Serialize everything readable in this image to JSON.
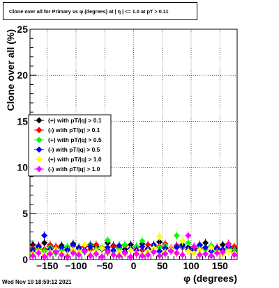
{
  "chart_data": {
    "type": "scatter",
    "title": "Clone  over all for Primary vs φ (degrees) at |  η | <= 1.0 at pT > 0.11",
    "xlabel": "φ (degrees)",
    "ylabel": "Clone  over all (%)",
    "xlim": [
      -180,
      180
    ],
    "ylim": [
      0,
      25
    ],
    "x_ticks": [
      -150,
      -100,
      -50,
      0,
      50,
      100,
      150
    ],
    "x_tick_labels": [
      "−150",
      "−100",
      "−50",
      "0",
      "50",
      "100",
      "150"
    ],
    "y_ticks": [
      0,
      5,
      10,
      15,
      20,
      25
    ],
    "y_tick_labels": [
      "0",
      "5",
      "10",
      "15",
      "20",
      "25"
    ],
    "grid": true,
    "legend_position": "left-middle",
    "marker": "diamond",
    "series": [
      {
        "name": "(+) with pT/|q| > 0.1",
        "color": "#000000",
        "x": [
          -175,
          -165,
          -155,
          -145,
          -135,
          -125,
          -115,
          -105,
          -95,
          -85,
          -75,
          -65,
          -55,
          -45,
          -35,
          -25,
          -15,
          -5,
          5,
          15,
          25,
          35,
          45,
          55,
          65,
          75,
          85,
          95,
          105,
          115,
          125,
          135,
          145,
          155,
          165,
          175
        ],
        "y": [
          1.6,
          1.3,
          1.8,
          1.4,
          1.2,
          1.5,
          1.1,
          1.7,
          1.3,
          1.0,
          1.6,
          1.4,
          1.2,
          1.8,
          1.5,
          1.3,
          1.1,
          1.6,
          1.4,
          1.7,
          1.2,
          1.5,
          1.9,
          1.3,
          1.1,
          1.4,
          1.6,
          1.3,
          1.2,
          1.5,
          1.8,
          1.4,
          1.1,
          1.6,
          1.3,
          1.2
        ]
      },
      {
        "name": "(-) with pT/|q| > 0.1",
        "color": "#ff0000",
        "x": [
          -175,
          -165,
          -155,
          -145,
          -135,
          -125,
          -115,
          -105,
          -95,
          -85,
          -75,
          -65,
          -55,
          -45,
          -35,
          -25,
          -15,
          -5,
          5,
          15,
          25,
          35,
          45,
          55,
          65,
          75,
          85,
          95,
          105,
          115,
          125,
          135,
          145,
          155,
          165,
          175
        ],
        "y": [
          1.2,
          1.5,
          1.1,
          1.6,
          1.4,
          1.0,
          1.3,
          1.5,
          1.2,
          1.4,
          1.1,
          1.6,
          1.3,
          1.0,
          1.4,
          1.2,
          1.5,
          1.1,
          1.3,
          1.0,
          1.6,
          1.2,
          1.4,
          1.7,
          1.2,
          1.5,
          1.3,
          1.0,
          1.4,
          1.2,
          1.1,
          1.5,
          1.3,
          1.0,
          1.7,
          1.4
        ]
      },
      {
        "name": "(+) with pT/|q| > 0.5",
        "color": "#00ff00",
        "x": [
          -175,
          -165,
          -155,
          -145,
          -135,
          -125,
          -115,
          -105,
          -95,
          -85,
          -75,
          -65,
          -55,
          -45,
          -35,
          -25,
          -15,
          -5,
          5,
          15,
          25,
          35,
          45,
          55,
          65,
          75,
          85,
          95,
          105,
          115,
          125,
          135,
          145,
          155,
          165,
          175
        ],
        "y": [
          0.8,
          1.1,
          0.9,
          1.3,
          0.7,
          1.0,
          1.4,
          0.9,
          1.2,
          0.8,
          1.5,
          1.1,
          1.3,
          2.1,
          0.9,
          1.2,
          1.6,
          1.0,
          1.4,
          2.0,
          1.1,
          0.9,
          1.3,
          1.5,
          1.0,
          2.6,
          1.4,
          1.8,
          1.0,
          1.3,
          1.1,
          1.5,
          1.0,
          0.8,
          1.2,
          1.0
        ]
      },
      {
        "name": "(-) with pT/|q| > 0.5",
        "color": "#0000ff",
        "x": [
          -175,
          -165,
          -155,
          -145,
          -135,
          -125,
          -115,
          -105,
          -95,
          -85,
          -75,
          -65,
          -55,
          -45,
          -35,
          -25,
          -15,
          -5,
          5,
          15,
          25,
          35,
          45,
          55,
          65,
          75,
          85,
          95,
          105,
          115,
          125,
          135,
          145,
          155,
          165,
          175
        ],
        "y": [
          1.0,
          1.4,
          2.6,
          1.1,
          0.9,
          1.3,
          1.0,
          1.6,
          1.2,
          1.0,
          1.4,
          0.9,
          1.1,
          1.3,
          1.0,
          1.5,
          0.8,
          1.2,
          1.0,
          1.4,
          1.1,
          1.6,
          0.9,
          1.2,
          1.0,
          1.3,
          1.5,
          1.1,
          1.0,
          1.6,
          1.3,
          0.9,
          1.2,
          1.1,
          1.4,
          0.8
        ]
      },
      {
        "name": "(+) with pT/|q| > 1.0",
        "color": "#ffff00",
        "x": [
          -175,
          -165,
          -155,
          -145,
          -135,
          -125,
          -115,
          -105,
          -95,
          -85,
          -75,
          -65,
          -55,
          -45,
          -35,
          -25,
          -15,
          -5,
          5,
          15,
          25,
          35,
          45,
          55,
          65,
          75,
          85,
          95,
          105,
          115,
          125,
          135,
          145,
          155,
          165,
          175
        ],
        "y": [
          0.6,
          0.9,
          0.5,
          0.8,
          1.1,
          0.7,
          0.5,
          1.0,
          0.8,
          1.6,
          0.6,
          0.9,
          1.2,
          0.7,
          0.5,
          0.8,
          0.6,
          1.0,
          0.7,
          0.5,
          0.9,
          1.2,
          2.5,
          0.8,
          1.1,
          0.6,
          2.0,
          0.9,
          0.7,
          1.0,
          0.6,
          1.3,
          0.8,
          0.5,
          0.9,
          0.7
        ]
      },
      {
        "name": "(-) with pT/|q| > 1.0",
        "color": "#ff00ff",
        "x": [
          -175,
          -165,
          -155,
          -145,
          -135,
          -125,
          -115,
          -105,
          -95,
          -85,
          -75,
          -65,
          -55,
          -45,
          -35,
          -25,
          -15,
          -5,
          5,
          15,
          25,
          35,
          45,
          55,
          65,
          75,
          85,
          95,
          105,
          115,
          125,
          135,
          145,
          155,
          165,
          175
        ],
        "y": [
          0.4,
          0.7,
          0.3,
          0.6,
          0.8,
          0.5,
          0.3,
          0.7,
          0.5,
          0.9,
          0.4,
          0.6,
          0.3,
          0.8,
          0.5,
          0.4,
          0.7,
          0.3,
          0.6,
          0.4,
          0.5,
          0.8,
          0.4,
          0.6,
          0.9,
          0.7,
          0.5,
          2.6,
          1.4,
          0.5,
          0.6,
          0.4,
          0.7,
          0.8,
          1.6,
          0.5
        ]
      }
    ]
  },
  "footer": {
    "timestamp": "Wed Nov 10 18:59:12 2021"
  }
}
